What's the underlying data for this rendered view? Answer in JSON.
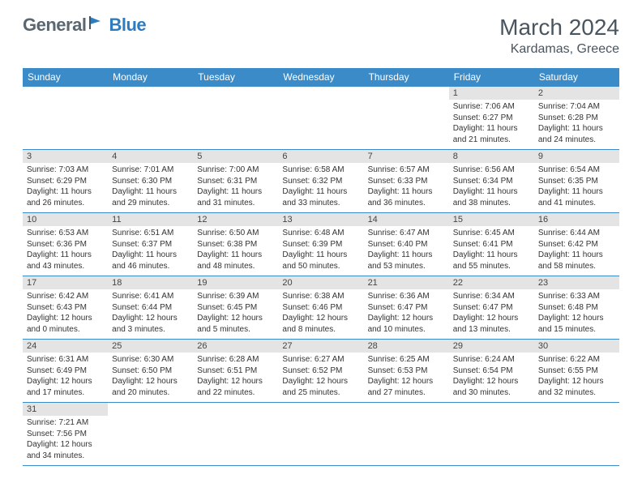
{
  "logo": {
    "part1": "General",
    "part2": "Blue"
  },
  "title": "March 2024",
  "location": "Kardamas, Greece",
  "colors": {
    "header_bg": "#3b8bc8",
    "header_text": "#ffffff",
    "daynum_bg": "#e4e4e4",
    "border": "#3b8bc8",
    "logo_gray": "#5b6770",
    "logo_blue": "#2e7cc0",
    "title_color": "#4a5560"
  },
  "weekdays": [
    "Sunday",
    "Monday",
    "Tuesday",
    "Wednesday",
    "Thursday",
    "Friday",
    "Saturday"
  ],
  "first_weekday_index": 5,
  "num_days": 31,
  "days": {
    "1": {
      "sunrise": "7:06 AM",
      "sunset": "6:27 PM",
      "dl_h": 11,
      "dl_m": 21
    },
    "2": {
      "sunrise": "7:04 AM",
      "sunset": "6:28 PM",
      "dl_h": 11,
      "dl_m": 24
    },
    "3": {
      "sunrise": "7:03 AM",
      "sunset": "6:29 PM",
      "dl_h": 11,
      "dl_m": 26
    },
    "4": {
      "sunrise": "7:01 AM",
      "sunset": "6:30 PM",
      "dl_h": 11,
      "dl_m": 29
    },
    "5": {
      "sunrise": "7:00 AM",
      "sunset": "6:31 PM",
      "dl_h": 11,
      "dl_m": 31
    },
    "6": {
      "sunrise": "6:58 AM",
      "sunset": "6:32 PM",
      "dl_h": 11,
      "dl_m": 33
    },
    "7": {
      "sunrise": "6:57 AM",
      "sunset": "6:33 PM",
      "dl_h": 11,
      "dl_m": 36
    },
    "8": {
      "sunrise": "6:56 AM",
      "sunset": "6:34 PM",
      "dl_h": 11,
      "dl_m": 38
    },
    "9": {
      "sunrise": "6:54 AM",
      "sunset": "6:35 PM",
      "dl_h": 11,
      "dl_m": 41
    },
    "10": {
      "sunrise": "6:53 AM",
      "sunset": "6:36 PM",
      "dl_h": 11,
      "dl_m": 43
    },
    "11": {
      "sunrise": "6:51 AM",
      "sunset": "6:37 PM",
      "dl_h": 11,
      "dl_m": 46
    },
    "12": {
      "sunrise": "6:50 AM",
      "sunset": "6:38 PM",
      "dl_h": 11,
      "dl_m": 48
    },
    "13": {
      "sunrise": "6:48 AM",
      "sunset": "6:39 PM",
      "dl_h": 11,
      "dl_m": 50
    },
    "14": {
      "sunrise": "6:47 AM",
      "sunset": "6:40 PM",
      "dl_h": 11,
      "dl_m": 53
    },
    "15": {
      "sunrise": "6:45 AM",
      "sunset": "6:41 PM",
      "dl_h": 11,
      "dl_m": 55
    },
    "16": {
      "sunrise": "6:44 AM",
      "sunset": "6:42 PM",
      "dl_h": 11,
      "dl_m": 58
    },
    "17": {
      "sunrise": "6:42 AM",
      "sunset": "6:43 PM",
      "dl_h": 12,
      "dl_m": 0
    },
    "18": {
      "sunrise": "6:41 AM",
      "sunset": "6:44 PM",
      "dl_h": 12,
      "dl_m": 3
    },
    "19": {
      "sunrise": "6:39 AM",
      "sunset": "6:45 PM",
      "dl_h": 12,
      "dl_m": 5
    },
    "20": {
      "sunrise": "6:38 AM",
      "sunset": "6:46 PM",
      "dl_h": 12,
      "dl_m": 8
    },
    "21": {
      "sunrise": "6:36 AM",
      "sunset": "6:47 PM",
      "dl_h": 12,
      "dl_m": 10
    },
    "22": {
      "sunrise": "6:34 AM",
      "sunset": "6:47 PM",
      "dl_h": 12,
      "dl_m": 13
    },
    "23": {
      "sunrise": "6:33 AM",
      "sunset": "6:48 PM",
      "dl_h": 12,
      "dl_m": 15
    },
    "24": {
      "sunrise": "6:31 AM",
      "sunset": "6:49 PM",
      "dl_h": 12,
      "dl_m": 17
    },
    "25": {
      "sunrise": "6:30 AM",
      "sunset": "6:50 PM",
      "dl_h": 12,
      "dl_m": 20
    },
    "26": {
      "sunrise": "6:28 AM",
      "sunset": "6:51 PM",
      "dl_h": 12,
      "dl_m": 22
    },
    "27": {
      "sunrise": "6:27 AM",
      "sunset": "6:52 PM",
      "dl_h": 12,
      "dl_m": 25
    },
    "28": {
      "sunrise": "6:25 AM",
      "sunset": "6:53 PM",
      "dl_h": 12,
      "dl_m": 27
    },
    "29": {
      "sunrise": "6:24 AM",
      "sunset": "6:54 PM",
      "dl_h": 12,
      "dl_m": 30
    },
    "30": {
      "sunrise": "6:22 AM",
      "sunset": "6:55 PM",
      "dl_h": 12,
      "dl_m": 32
    },
    "31": {
      "sunrise": "7:21 AM",
      "sunset": "7:56 PM",
      "dl_h": 12,
      "dl_m": 34
    }
  },
  "labels": {
    "sunrise": "Sunrise:",
    "sunset": "Sunset:",
    "daylight": "Daylight:",
    "hours": "hours",
    "and": "and",
    "minutes": "minutes."
  }
}
